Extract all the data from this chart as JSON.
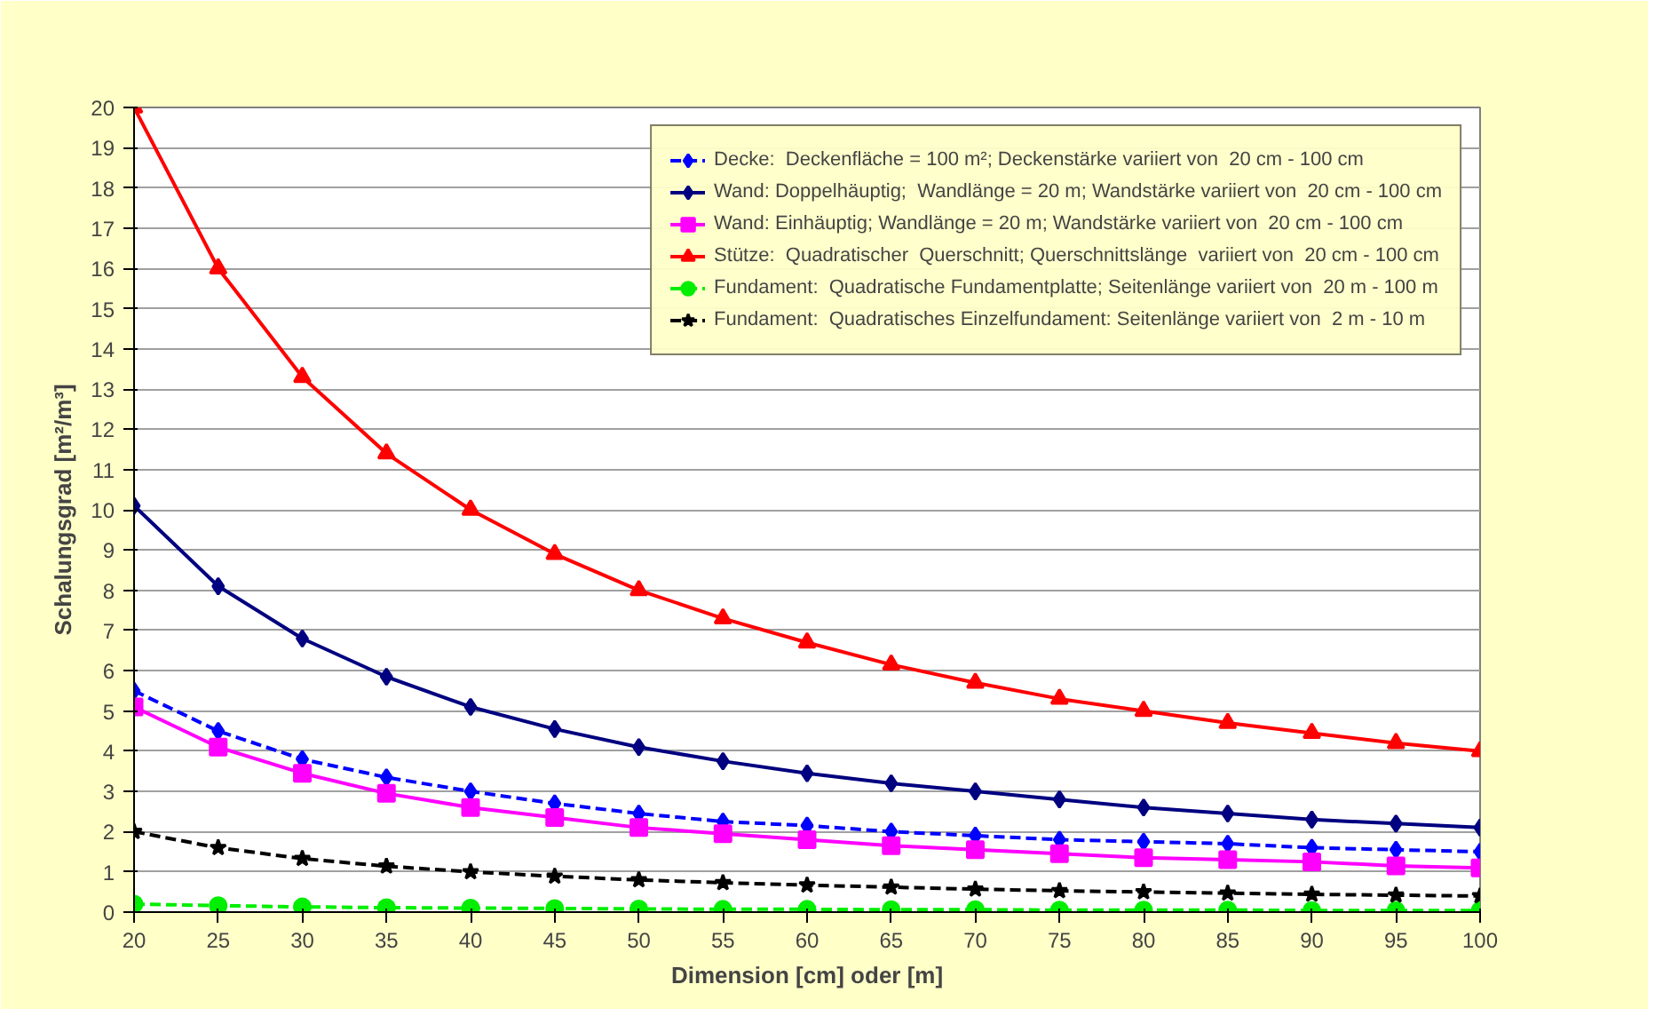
{
  "chart_data": {
    "type": "line",
    "xlabel": "Dimension [cm] oder [m]",
    "ylabel": "Schalungsgrad [m²/m³]",
    "x": [
      20,
      25,
      30,
      35,
      40,
      45,
      50,
      55,
      60,
      65,
      70,
      75,
      80,
      85,
      90,
      95,
      100
    ],
    "xlim": [
      20,
      100
    ],
    "xticks": [
      20,
      25,
      30,
      35,
      40,
      45,
      50,
      55,
      60,
      65,
      70,
      75,
      80,
      85,
      90,
      95,
      100
    ],
    "ylim": [
      0,
      20
    ],
    "yticks": [
      0,
      1,
      2,
      3,
      4,
      5,
      6,
      7,
      8,
      9,
      10,
      11,
      12,
      13,
      14,
      15,
      16,
      17,
      18,
      19,
      20
    ],
    "grid": "y",
    "legend": "top right",
    "series": [
      {
        "name": "Decke:  Deckenfläche = 100 m²; Deckenstärke variiert von  20 cm - 100 cm",
        "color": "#0000ff",
        "marker": "diamond",
        "line_style": "dashed",
        "values": [
          5.5,
          4.5,
          3.8,
          3.35,
          3.0,
          2.7,
          2.45,
          2.25,
          2.15,
          2.0,
          1.9,
          1.8,
          1.75,
          1.7,
          1.6,
          1.55,
          1.5
        ]
      },
      {
        "name": "Wand: Doppelhäuptig;  Wandlänge = 20 m; Wandstärke variiert von  20 cm - 100 cm",
        "color": "#000080",
        "marker": "diamond",
        "line_style": "solid",
        "values": [
          10.1,
          8.1,
          6.8,
          5.85,
          5.1,
          4.55,
          4.1,
          3.75,
          3.45,
          3.2,
          3.0,
          2.8,
          2.6,
          2.45,
          2.3,
          2.2,
          2.1
        ]
      },
      {
        "name": "Wand: Einhäuptig; Wandlänge = 20 m; Wandstärke variiert von  20 cm - 100 cm",
        "color": "#ff00ff",
        "marker": "square",
        "line_style": "solid",
        "values": [
          5.1,
          4.1,
          3.45,
          2.95,
          2.6,
          2.35,
          2.1,
          1.95,
          1.8,
          1.65,
          1.55,
          1.45,
          1.35,
          1.3,
          1.25,
          1.15,
          1.1
        ]
      },
      {
        "name": "Stütze:  Quadratischer  Querschnitt; Querschnittslänge  variiert von  20 cm - 100 cm",
        "color": "#ff0000",
        "marker": "triangle",
        "line_style": "solid",
        "values": [
          20,
          16,
          13.3,
          11.4,
          10,
          8.9,
          8,
          7.3,
          6.7,
          6.15,
          5.7,
          5.3,
          5.0,
          4.7,
          4.45,
          4.2,
          4.0
        ]
      },
      {
        "name": "Fundament:  Quadratische Fundamentplatte; Seitenlänge variiert von  20 m - 100 m",
        "color": "#00ee00",
        "marker": "circle",
        "line_style": "dashed",
        "values": [
          0.2,
          0.16,
          0.13,
          0.11,
          0.1,
          0.09,
          0.08,
          0.07,
          0.07,
          0.06,
          0.06,
          0.05,
          0.05,
          0.05,
          0.04,
          0.04,
          0.04
        ]
      },
      {
        "name": "Fundament:  Quadratisches Einzelfundament: Seitenlänge variiert von  2 m - 10 m",
        "color": "#000000",
        "marker": "star",
        "line_style": "dashed",
        "values": [
          2.0,
          1.6,
          1.33,
          1.14,
          1.0,
          0.89,
          0.8,
          0.73,
          0.67,
          0.62,
          0.57,
          0.53,
          0.5,
          0.47,
          0.44,
          0.42,
          0.4
        ]
      }
    ]
  }
}
